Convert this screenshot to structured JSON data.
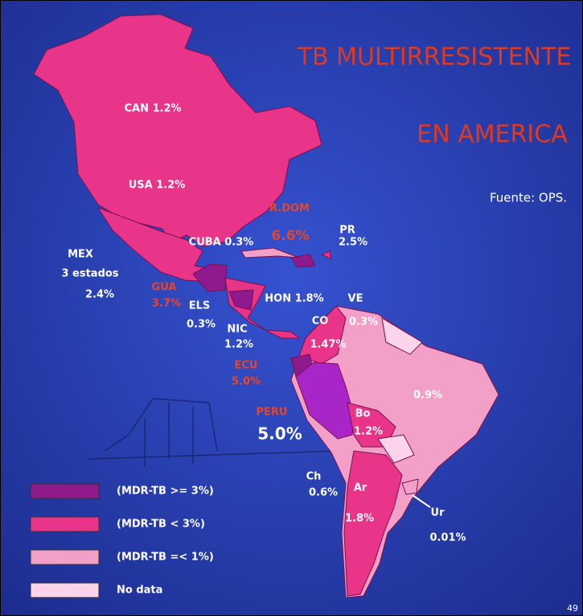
{
  "title": [
    "TB MULTIRRESISTENTE",
    "EN AMERICA"
  ],
  "source": "Fuente: OPS.",
  "labels": [
    {
      "text": "CAN 1.2%",
      "color": "#ffffff"
    },
    {
      "text": "USA 1.2%",
      "color": "#ffffff"
    },
    {
      "text": "MEX",
      "color": "#ffffff"
    },
    {
      "text": "3 estados",
      "color": "#ffffff"
    },
    {
      "text": "2.4%",
      "color": "#ffffff"
    },
    {
      "text": "GUA",
      "color": "#e8452a"
    },
    {
      "text": "3.7%",
      "color": "#e8452a"
    },
    {
      "text": "ELS",
      "color": "#ffffff"
    },
    {
      "text": "0.3%",
      "color": "#ffffff"
    },
    {
      "text": "CUBA 0.3%",
      "color": "#ffffff"
    },
    {
      "text": "R.DOM",
      "color": "#e8452a"
    },
    {
      "text": "6.6%",
      "color": "#e8452a"
    },
    {
      "text": "PR",
      "color": "#ffffff"
    },
    {
      "text": "2.5%",
      "color": "#ffffff"
    },
    {
      "text": "HON 1.8%",
      "color": "#ffffff"
    },
    {
      "text": "VE",
      "color": "#ffffff"
    },
    {
      "text": "NIC",
      "color": "#ffffff"
    },
    {
      "text": "1.2%",
      "color": "#ffffff"
    },
    {
      "text": "CO",
      "color": "#ffffff"
    },
    {
      "text": "0.3%",
      "color": "#ffffff"
    },
    {
      "text": "1.47%",
      "color": "#ffffff"
    },
    {
      "text": "ECU",
      "color": "#e8452a"
    },
    {
      "text": "5.0%",
      "color": "#e8452a"
    },
    {
      "text": "0.9%",
      "color": "#ffffff"
    },
    {
      "text": "PERU",
      "color": "#e8452a"
    },
    {
      "text": "5.0%",
      "color": "#ffffff"
    },
    {
      "text": "Bo",
      "color": "#ffffff"
    },
    {
      "text": "1.2%",
      "color": "#ffffff"
    },
    {
      "text": "Ch",
      "color": "#ffffff"
    },
    {
      "text": "0.6%",
      "color": "#ffffff"
    },
    {
      "text": "Ar",
      "color": "#ffffff"
    },
    {
      "text": "1.8%",
      "color": "#ffffff"
    },
    {
      "text": "Ur",
      "color": "#ffffff"
    },
    {
      "text": "0.01%",
      "color": "#ffffff"
    }
  ],
  "legend": [
    {
      "label": "(MDR-TB >= 3%)",
      "color": "#8e1a8e"
    },
    {
      "label": "(MDR-TB <  3%)",
      "color": "#e8358a"
    },
    {
      "label": "(MDR-TB =< 1%)",
      "color": "#f3a0c8"
    },
    {
      "label": "No data",
      "color": "#fbd3ea"
    }
  ],
  "page_number": "49"
}
